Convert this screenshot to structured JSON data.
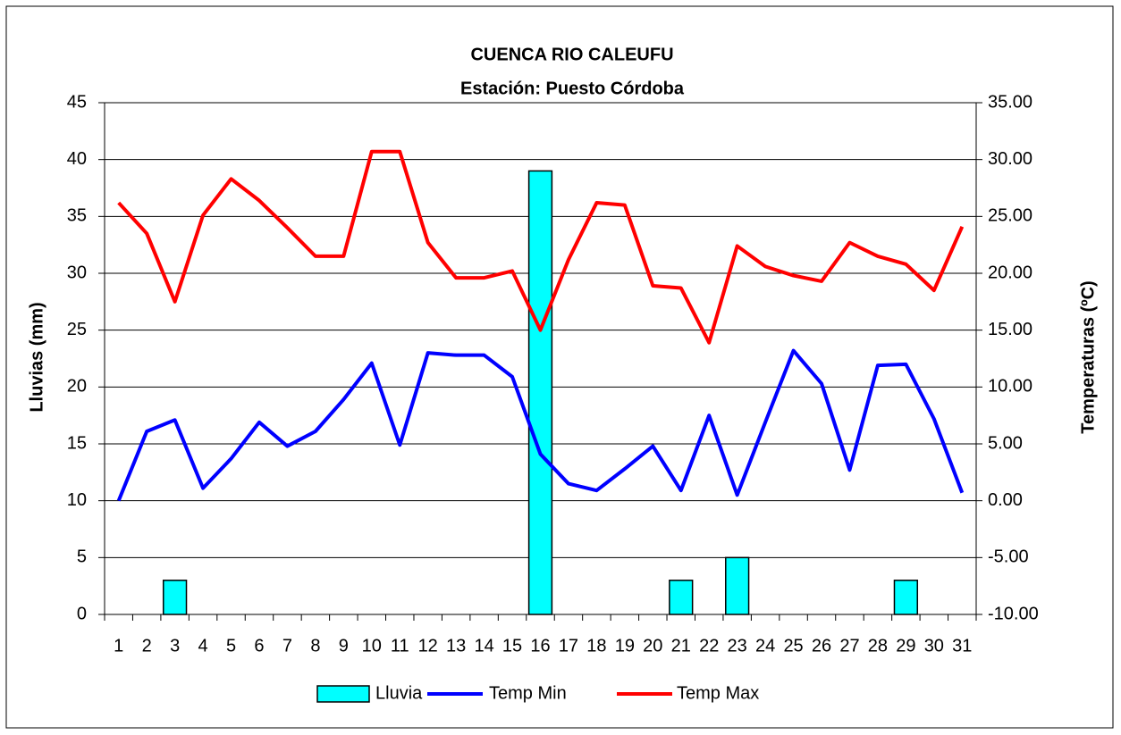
{
  "chart_data": {
    "type": "combo",
    "title": "CUENCA RIO CALEUFU",
    "subtitle": "Estación: Puesto Córdoba",
    "y_label": "Lluvias (mm)",
    "y2_label": "Temperaturas (ºC)",
    "categories": [
      "1",
      "2",
      "3",
      "4",
      "5",
      "6",
      "7",
      "8",
      "9",
      "10",
      "11",
      "12",
      "13",
      "14",
      "15",
      "16",
      "17",
      "18",
      "19",
      "20",
      "21",
      "22",
      "23",
      "24",
      "25",
      "26",
      "27",
      "28",
      "29",
      "30",
      "31"
    ],
    "series": [
      {
        "name": "Lluvia",
        "type": "bar",
        "color": "#00ffff",
        "values": [
          0,
          0,
          3,
          0,
          0,
          0,
          0,
          0,
          0,
          0,
          0,
          0,
          0,
          0,
          0,
          39,
          0,
          0,
          0,
          0,
          3,
          0,
          5,
          0,
          0,
          0,
          0,
          0,
          3,
          0,
          0
        ]
      },
      {
        "name": "Temp Min",
        "type": "line",
        "axis": "y2",
        "color": "#0000ff",
        "values": [
          0.0,
          6.1,
          7.1,
          1.1,
          3.7,
          6.9,
          4.8,
          6.1,
          8.9,
          12.1,
          4.9,
          13.0,
          12.8,
          12.8,
          10.9,
          4.1,
          1.5,
          0.9,
          2.8,
          4.8,
          0.9,
          7.5,
          0.5,
          6.9,
          13.2,
          10.3,
          2.7,
          11.9,
          12.0,
          7.2,
          0.7
        ]
      },
      {
        "name": "Temp Max",
        "type": "line",
        "axis": "y2",
        "color": "#ff0000",
        "values": [
          26.2,
          23.5,
          17.5,
          25.1,
          28.3,
          26.4,
          24.0,
          21.5,
          21.5,
          30.7,
          30.7,
          22.7,
          19.6,
          19.6,
          20.2,
          15.0,
          21.2,
          26.2,
          26.0,
          18.9,
          18.7,
          13.9,
          22.4,
          20.6,
          19.8,
          19.3,
          22.7,
          21.5,
          20.8,
          18.5,
          24.1
        ]
      }
    ],
    "ylim": [
      0,
      45
    ],
    "yticks": [
      0,
      5,
      10,
      15,
      20,
      25,
      30,
      35,
      40,
      45
    ],
    "y2lim": [
      -10,
      35
    ],
    "y2ticks": [
      {
        "value": -10,
        "label": "-10.00"
      },
      {
        "value": -5,
        "label": "-5.00"
      },
      {
        "value": 0,
        "label": "0.00"
      },
      {
        "value": 5,
        "label": "5.00"
      },
      {
        "value": 10,
        "label": "10.00"
      },
      {
        "value": 15,
        "label": "15.00"
      },
      {
        "value": 20,
        "label": "20.00"
      },
      {
        "value": 25,
        "label": "25.00"
      },
      {
        "value": 30,
        "label": "30.00"
      },
      {
        "value": 35,
        "label": "35.00"
      }
    ],
    "grid": true,
    "legend": "bottom"
  }
}
